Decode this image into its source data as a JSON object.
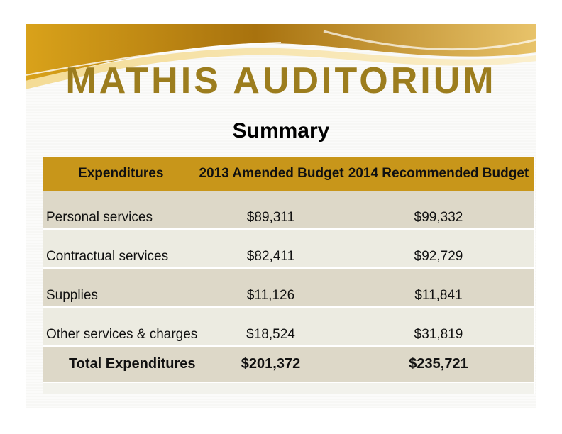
{
  "title": "MATHIS AUDITORIUM",
  "subtitle": "Summary",
  "table": {
    "headers": [
      "Expenditures",
      "2013 Amended Budget",
      "2014 Recommended Budget"
    ],
    "rows": [
      {
        "label": "Personal services",
        "budget_2013": "$89,311",
        "budget_2014": "$99,332"
      },
      {
        "label": "Contractual services",
        "budget_2013": "$82,411",
        "budget_2014": "$92,729"
      },
      {
        "label": "Supplies",
        "budget_2013": "$11,126",
        "budget_2014": "$11,841"
      },
      {
        "label": "Other services & charges",
        "budget_2013": "$18,524",
        "budget_2014": "$31,819"
      }
    ],
    "total": {
      "label": "Total Expenditures",
      "budget_2013": "$201,372",
      "budget_2014": "$235,721"
    }
  },
  "colors": {
    "title": "#9c7d1e",
    "header_fill": "#c8961a",
    "row_dark": "#ddd8c8",
    "row_light": "#ecebe1"
  }
}
